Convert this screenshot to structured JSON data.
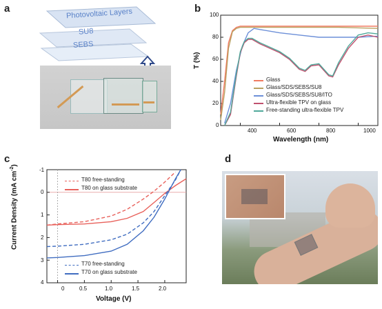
{
  "panels": {
    "a": {
      "label": "a",
      "layers": [
        "Photovoltaic Layers",
        "SU8",
        "SEBS"
      ]
    },
    "b": {
      "label": "b",
      "ylabel": "T (%)",
      "xlabel": "Wavelength (nm)",
      "xticks": [
        "400",
        "600",
        "800",
        "1000"
      ],
      "yticks": [
        "0",
        "20",
        "40",
        "60",
        "80",
        "100"
      ],
      "legend": [
        "Glass",
        "Glass/SDS/SEBS/SU8",
        "Glass/SDS/SEBS/SU8/ITO",
        "Ultra-flexible TPV on glass",
        "Free-standing ultra-flexible TPV"
      ],
      "colors": [
        "#f07a60",
        "#b8a060",
        "#6c8fd8",
        "#c0506e",
        "#4fa89a"
      ]
    },
    "c": {
      "label": "c",
      "ylabel": "Current Density (mA cm",
      "ylabel_sup": "-2",
      "ylabel_close": ")",
      "xlabel": "Voltage (V)",
      "xticks": [
        "0",
        "0.5",
        "1.0",
        "1.5",
        "2.0"
      ],
      "yticks": [
        "-1",
        "0",
        "1",
        "2",
        "3",
        "4"
      ],
      "legend_top": [
        "T80 free-standing",
        "T80 on glass substrate"
      ],
      "legend_bottom": [
        "T70 free-standing",
        "T70 on glass substrate"
      ],
      "colors": {
        "t80": "#e8605a",
        "t70": "#3f6cc0"
      }
    },
    "d": {
      "label": "d"
    }
  },
  "chart_data": [
    {
      "type": "line",
      "xlabel": "Wavelength (nm)",
      "ylabel": "T (%)",
      "xlim": [
        300,
        1100
      ],
      "ylim": [
        0,
        100
      ],
      "series": [
        {
          "name": "Glass",
          "x": [
            300,
            320,
            340,
            360,
            380,
            400,
            500,
            700,
            900,
            1100
          ],
          "y": [
            10,
            40,
            75,
            86,
            89,
            90,
            90,
            90,
            90,
            90
          ]
        },
        {
          "name": "Glass/SDS/SEBS/SU8",
          "x": [
            300,
            320,
            340,
            360,
            380,
            400,
            500,
            700,
            900,
            1100
          ],
          "y": [
            5,
            30,
            70,
            85,
            88,
            89,
            89,
            89,
            89,
            88
          ]
        },
        {
          "name": "Glass/SDS/SEBS/SU8/ITO",
          "x": [
            320,
            350,
            380,
            410,
            440,
            470,
            500,
            600,
            700,
            800,
            900,
            1000,
            1100
          ],
          "y": [
            2,
            20,
            50,
            72,
            84,
            88,
            87,
            84,
            82,
            80,
            80,
            80,
            81
          ]
        },
        {
          "name": "Ultra-flexible TPV on glass",
          "x": [
            320,
            350,
            380,
            400,
            420,
            440,
            460,
            500,
            550,
            600,
            650,
            700,
            730,
            760,
            800,
            850,
            870,
            900,
            950,
            1000,
            1050,
            1100
          ],
          "y": [
            0,
            10,
            45,
            66,
            75,
            78,
            78,
            74,
            70,
            66,
            60,
            51,
            49,
            54,
            55,
            45,
            44,
            55,
            70,
            80,
            82,
            80
          ]
        },
        {
          "name": "Free-standing ultra-flexible TPV",
          "x": [
            320,
            350,
            380,
            400,
            420,
            440,
            460,
            500,
            550,
            600,
            650,
            700,
            730,
            760,
            800,
            850,
            870,
            900,
            950,
            1000,
            1050,
            1100
          ],
          "y": [
            0,
            12,
            47,
            67,
            76,
            79,
            79,
            75,
            71,
            67,
            61,
            52,
            50,
            55,
            56,
            46,
            45,
            57,
            72,
            82,
            84,
            83
          ]
        }
      ]
    },
    {
      "type": "line",
      "xlabel": "Voltage (V)",
      "ylabel": "Current Density (mA cm-2)",
      "xlim": [
        -0.2,
        2.4
      ],
      "ylim": [
        4,
        -1
      ],
      "series": [
        {
          "name": "T80 free-standing",
          "x": [
            -0.2,
            0,
            0.5,
            1.0,
            1.3,
            1.6,
            1.8,
            2.0,
            2.2
          ],
          "y": [
            1.45,
            1.4,
            1.3,
            1.05,
            0.75,
            0.3,
            -0.05,
            -0.45,
            -0.9
          ]
        },
        {
          "name": "T80 on glass substrate",
          "x": [
            -0.2,
            0,
            0.5,
            1.0,
            1.3,
            1.6,
            1.8,
            2.0,
            2.2,
            2.4
          ],
          "y": [
            1.45,
            1.43,
            1.4,
            1.3,
            1.15,
            0.85,
            0.45,
            0.05,
            -0.3,
            -0.6
          ]
        },
        {
          "name": "T70 free-standing",
          "x": [
            -0.2,
            0,
            0.5,
            1.0,
            1.3,
            1.6,
            1.8,
            2.0,
            2.2,
            2.3
          ],
          "y": [
            2.4,
            2.38,
            2.3,
            2.1,
            1.85,
            1.35,
            0.85,
            0.15,
            -0.55,
            -1.0
          ]
        },
        {
          "name": "T70 on glass substrate",
          "x": [
            -0.2,
            0,
            0.5,
            1.0,
            1.3,
            1.6,
            1.8,
            2.0,
            2.2,
            2.3
          ],
          "y": [
            2.9,
            2.88,
            2.8,
            2.6,
            2.3,
            1.7,
            1.1,
            0.3,
            -0.6,
            -1.0
          ]
        }
      ]
    }
  ]
}
